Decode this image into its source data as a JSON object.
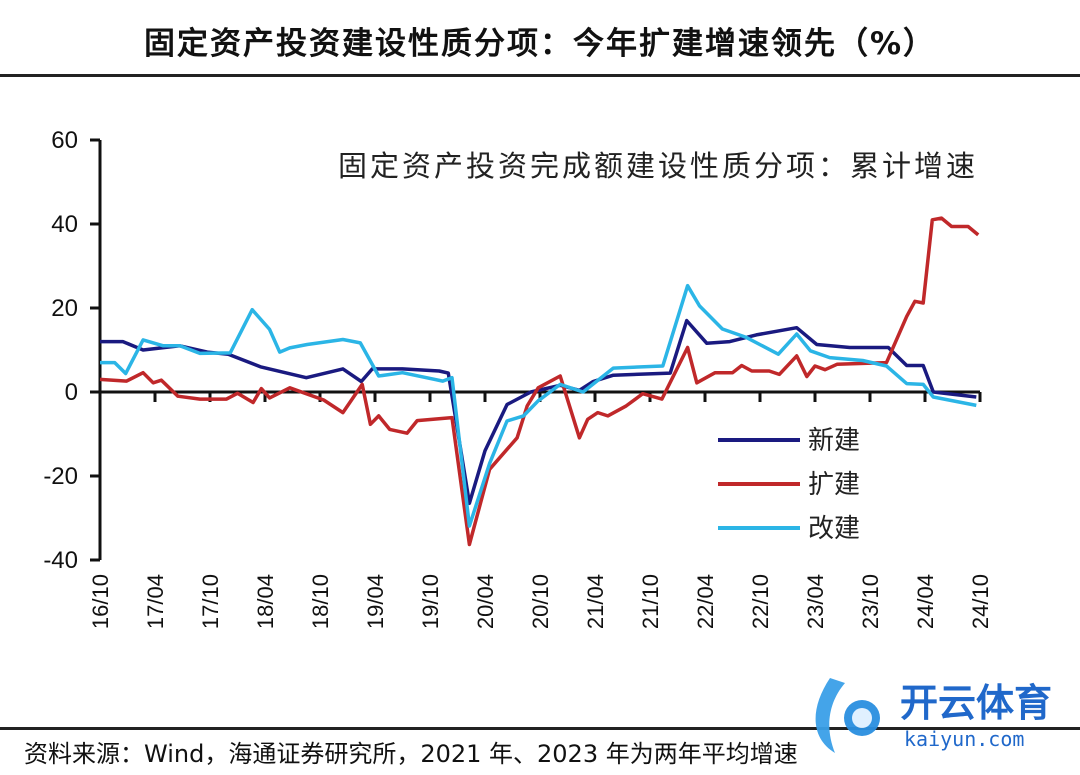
{
  "header": {
    "title": "固定资产投资建设性质分项：今年扩建增速领先（%）"
  },
  "footer": {
    "source": "资料来源：Wind，海通证券研究所，2021 年、2023 年为两年平均增速"
  },
  "watermark": {
    "brand": "开云体育",
    "domain": "kaiyun.com"
  },
  "chart_data": {
    "type": "line",
    "title": "固定资产投资完成额建设性质分项：累计增速",
    "xlabel": "",
    "ylabel": "",
    "x_unit": "months since 2016-10",
    "xlim": [
      0,
      96
    ],
    "ylim": [
      -40,
      60
    ],
    "yticks": [
      60,
      40,
      20,
      0,
      -20,
      -40
    ],
    "xtick_labels": [
      "16/10",
      "17/04",
      "17/10",
      "18/04",
      "18/10",
      "19/04",
      "19/10",
      "20/04",
      "20/10",
      "21/04",
      "21/10",
      "22/04",
      "22/10",
      "23/04",
      "23/10",
      "24/04",
      "24/10"
    ],
    "legend_position": "center-right",
    "grid": false,
    "series": [
      {
        "name": "新建",
        "color": "#1a1a80",
        "points": [
          [
            0,
            12
          ],
          [
            2.5,
            12
          ],
          [
            4.7,
            10
          ],
          [
            8.7,
            11
          ],
          [
            11.7,
            9.5
          ],
          [
            14,
            9
          ],
          [
            17.5,
            6
          ],
          [
            22.5,
            3.4
          ],
          [
            26.5,
            5.5
          ],
          [
            28.5,
            2.5
          ],
          [
            29.7,
            5.5
          ],
          [
            33,
            5.5
          ],
          [
            37,
            5
          ],
          [
            38,
            4.5
          ],
          [
            40.3,
            -26.5
          ],
          [
            42,
            -14
          ],
          [
            44.4,
            -3
          ],
          [
            47,
            0
          ],
          [
            50.2,
            1.6
          ],
          [
            52.3,
            0.4
          ],
          [
            53.8,
            2.5
          ],
          [
            56,
            4
          ],
          [
            62.2,
            4.5
          ],
          [
            64,
            17
          ],
          [
            66.2,
            11.6
          ],
          [
            68.7,
            12
          ],
          [
            71.6,
            13.6
          ],
          [
            76,
            15.3
          ],
          [
            78.2,
            11.3
          ],
          [
            81.8,
            10.6
          ],
          [
            86,
            10.6
          ],
          [
            88,
            6.3
          ],
          [
            89.8,
            6.3
          ],
          [
            90.9,
            0
          ],
          [
            95.6,
            -1.2
          ]
        ]
      },
      {
        "name": "扩建",
        "color": "#c0282a",
        "points": [
          [
            0,
            3
          ],
          [
            2.9,
            2.6
          ],
          [
            4.7,
            4.6
          ],
          [
            5.8,
            2.2
          ],
          [
            6.7,
            2.8
          ],
          [
            8.5,
            -1
          ],
          [
            10.9,
            -1.7
          ],
          [
            13.8,
            -1.7
          ],
          [
            15,
            -0.3
          ],
          [
            16.7,
            -2.5
          ],
          [
            17.6,
            0.8
          ],
          [
            18.5,
            -1.4
          ],
          [
            20.7,
            1
          ],
          [
            24.4,
            -1.9
          ],
          [
            26.5,
            -4.9
          ],
          [
            28.6,
            1.8
          ],
          [
            29.5,
            -7.7
          ],
          [
            30.4,
            -5.7
          ],
          [
            31.6,
            -8.9
          ],
          [
            33.5,
            -9.8
          ],
          [
            34.6,
            -6.8
          ],
          [
            38.4,
            -6.1
          ],
          [
            40.3,
            -36.3
          ],
          [
            42.5,
            -18.4
          ],
          [
            45.5,
            -10.9
          ],
          [
            46.6,
            -3.3
          ],
          [
            47.8,
            1
          ],
          [
            50.2,
            3.8
          ],
          [
            52.3,
            -10.9
          ],
          [
            53.2,
            -6.5
          ],
          [
            54.3,
            -4.9
          ],
          [
            55.4,
            -5.7
          ],
          [
            57.4,
            -3.3
          ],
          [
            59.2,
            -0.4
          ],
          [
            61.3,
            -1.7
          ],
          [
            64.1,
            10.6
          ],
          [
            65.1,
            2.2
          ],
          [
            67.1,
            4.6
          ],
          [
            69,
            4.6
          ],
          [
            70,
            6.3
          ],
          [
            71.1,
            5
          ],
          [
            73,
            5
          ],
          [
            74.1,
            4.2
          ],
          [
            76,
            8.6
          ],
          [
            77.1,
            3.7
          ],
          [
            78,
            6.2
          ],
          [
            79.1,
            5.3
          ],
          [
            80.4,
            6.6
          ],
          [
            85.8,
            7
          ],
          [
            88,
            18
          ],
          [
            88.9,
            21.6
          ],
          [
            89.8,
            21.2
          ],
          [
            90.8,
            41
          ],
          [
            91.8,
            41.4
          ],
          [
            92.9,
            39.4
          ],
          [
            94.7,
            39.4
          ],
          [
            95.8,
            37.4
          ]
        ]
      },
      {
        "name": "改建",
        "color": "#2bb5e6",
        "points": [
          [
            0,
            7
          ],
          [
            1.6,
            7
          ],
          [
            2.8,
            4.4
          ],
          [
            4.7,
            12.4
          ],
          [
            6.9,
            11
          ],
          [
            8.7,
            11
          ],
          [
            10.9,
            9.2
          ],
          [
            14.2,
            9.3
          ],
          [
            16.6,
            19.6
          ],
          [
            18.5,
            14.9
          ],
          [
            19.6,
            9.5
          ],
          [
            20.7,
            10.5
          ],
          [
            22.6,
            11.3
          ],
          [
            26.5,
            12.5
          ],
          [
            28.4,
            11.7
          ],
          [
            30.4,
            3.8
          ],
          [
            33,
            4.6
          ],
          [
            37.4,
            2.6
          ],
          [
            38.4,
            3.4
          ],
          [
            40.3,
            -31.9
          ],
          [
            42.5,
            -17
          ],
          [
            44.4,
            -6.9
          ],
          [
            46.2,
            -5.7
          ],
          [
            47.8,
            -2.1
          ],
          [
            50.2,
            1.8
          ],
          [
            52.7,
            0
          ],
          [
            56,
            5.7
          ],
          [
            61.4,
            6.2
          ],
          [
            64.1,
            25.3
          ],
          [
            65.4,
            20.5
          ],
          [
            67.9,
            15
          ],
          [
            70.5,
            13
          ],
          [
            74,
            9
          ],
          [
            76,
            13.8
          ],
          [
            77.5,
            9.8
          ],
          [
            79.6,
            8.2
          ],
          [
            83.2,
            7.5
          ],
          [
            85.8,
            6.2
          ],
          [
            88,
            2
          ],
          [
            89.8,
            1.8
          ],
          [
            90.9,
            -1.2
          ],
          [
            95.6,
            -3.2
          ]
        ]
      }
    ]
  }
}
